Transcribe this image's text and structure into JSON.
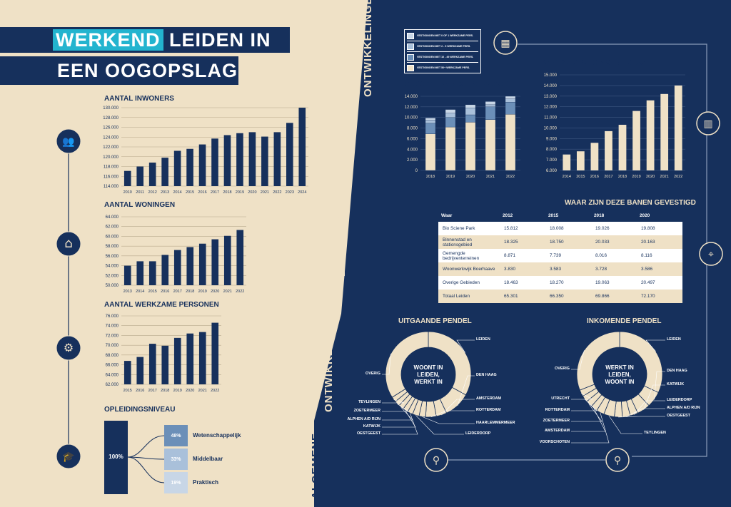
{
  "header": {
    "word_highlight": "WERKEND",
    "line1_rest": "LEIDEN IN",
    "line2": "EEN OOGOPSLAG"
  },
  "vertical_left": {
    "part1": "ALGEMENE",
    "part2": "ONTWIKKELINGEN"
  },
  "vertical_right": {
    "part1": "ECONOMISCHE",
    "part2": "ONTWIKKELINGEN"
  },
  "icons": [
    "people-icon",
    "house-icon",
    "gear-icon",
    "graduation-cap-icon",
    "buildings-icon",
    "office-building-icon",
    "map-pin-icon",
    "commute-icon"
  ],
  "colors": {
    "navy": "#16305c",
    "beige": "#efe1c6",
    "light_blue": "#6b8fb8",
    "pale_blue": "#a9c0da",
    "pale2": "#c8d6e6"
  },
  "chart_data": [
    {
      "id": "inwoners",
      "type": "bar",
      "title": "AANTAL INWONERS",
      "categories": [
        "2010",
        "2011",
        "2012",
        "2013",
        "2014",
        "2015",
        "2016",
        "2017",
        "2018",
        "2019",
        "2020",
        "2021",
        "2022",
        "2023",
        "2024"
      ],
      "values": [
        117100,
        118000,
        118800,
        119800,
        121200,
        121600,
        122500,
        123700,
        124400,
        124800,
        125000,
        124100,
        125000,
        126900,
        130000
      ],
      "ylim": [
        114000,
        130000
      ],
      "yticks": [
        "114.000",
        "116.000",
        "118.000",
        "120.000",
        "122.000",
        "124.000",
        "126.000",
        "128.000",
        "130.000"
      ]
    },
    {
      "id": "woningen",
      "type": "bar",
      "title": "AANTAL WONINGEN",
      "categories": [
        "2013",
        "2014",
        "2015",
        "2016",
        "2017",
        "2018",
        "2019",
        "2020",
        "2021",
        "2022"
      ],
      "values": [
        54000,
        54900,
        54900,
        56200,
        57200,
        57800,
        58500,
        59400,
        60100,
        61300
      ],
      "ylim": [
        50000,
        64000
      ],
      "yticks": [
        "50.000",
        "52.000",
        "54.000",
        "56.000",
        "58.000",
        "60.000",
        "62.000",
        "64.000"
      ]
    },
    {
      "id": "werkzame",
      "type": "bar",
      "title": "AANTAL WERKZAME PERSONEN",
      "categories": [
        "2015",
        "2016",
        "2017",
        "2018",
        "2019",
        "2020",
        "2021",
        "2022"
      ],
      "values": [
        66800,
        67600,
        70300,
        69900,
        71500,
        72400,
        72700,
        74600
      ],
      "ylim": [
        62000,
        76000
      ],
      "yticks": [
        "62.000",
        "64.000",
        "66.000",
        "68.000",
        "70.000",
        "72.000",
        "74.000",
        "76.000"
      ]
    },
    {
      "id": "grootte",
      "type": "stacked-bar",
      "title": "GROOTTE VAN DE BEDRIJVEN",
      "categories": [
        "2018",
        "2019",
        "2020",
        "2021",
        "2022"
      ],
      "series": [
        {
          "name": "VESTIGINGEN MET 50+ WERKZAME PERS.",
          "values": [
            6900,
            8200,
            9100,
            9600,
            10600
          ]
        },
        {
          "name": "VESTIGINGEN MET 10 - 49 WERKZAME PERS.",
          "values": [
            2000,
            1800,
            1400,
            2400,
            2300
          ]
        },
        {
          "name": "VESTIGINGEN MET 2 - 9 WERKZAME PERS.",
          "values": [
            600,
            800,
            1300,
            400,
            600
          ]
        },
        {
          "name": "VESTIGINGEN MET 0 OF 1 WERKZAME PERS.",
          "values": [
            400,
            700,
            600,
            600,
            500
          ]
        }
      ],
      "ylim": [
        0,
        14000
      ],
      "yticks": [
        "0",
        "2.000",
        "4.000",
        "6.000",
        "8.000",
        "10.000",
        "12.000",
        "14.000"
      ],
      "legend": "top-left"
    },
    {
      "id": "vestigingen",
      "type": "bar",
      "title": "AANTAL VESTIGINGEN TOTAAL",
      "categories": [
        "2014",
        "2015",
        "2016",
        "2017",
        "2018",
        "2019",
        "2020",
        "2021",
        "2022"
      ],
      "values": [
        7500,
        7800,
        8600,
        9700,
        10300,
        11600,
        12600,
        13200,
        14000
      ],
      "ylim": [
        6000,
        15000
      ],
      "yticks": [
        "6.000",
        "7.000",
        "8.000",
        "9.000",
        "10.000",
        "11.000",
        "12.000",
        "13.000",
        "14.000",
        "15.000"
      ]
    },
    {
      "id": "banen",
      "type": "table",
      "title": "WAAR ZIJN DEZE BANEN GEVESTIGD",
      "headers": [
        "Waar",
        "2012",
        "2015",
        "2018",
        "2020"
      ],
      "rows": [
        [
          "Bio Sciene Park",
          "15.812",
          "18.008",
          "19.026",
          "19.808"
        ],
        [
          "Binnenstad en stationsgebied",
          "18.325",
          "18.750",
          "20.033",
          "20.163"
        ],
        [
          "Gemengde bedrijventerreinen",
          "8.871",
          "7.739",
          "8.016",
          "8.116"
        ],
        [
          "Woonwerkwijk Boerhaave",
          "3.830",
          "3.583",
          "3.728",
          "3.586"
        ],
        [
          "Overige Gebieden",
          "18.463",
          "18.270",
          "19.063",
          "20.497"
        ],
        [
          "Totaal Leiden",
          "65.301",
          "66.350",
          "69.866",
          "72.170"
        ]
      ]
    },
    {
      "id": "uitgaande",
      "type": "pie",
      "title": "UITGAANDE PENDEL",
      "center": [
        "WOONT IN",
        "LEIDEN,",
        "WERKT IN"
      ],
      "labels": [
        "LEIDEN",
        "DEN HAAG",
        "AMSTERDAM",
        "ROTTERDAM",
        "HAARLEMMERMEER",
        "LEIDERDORP",
        "OESTGEEST",
        "KATWIJK",
        "ALPHEN A/D RIJN",
        "ZOETERMEER",
        "TEYLINGEN",
        "OVERIG"
      ],
      "values": [
        33,
        10,
        4,
        4,
        2.5,
        2.5,
        2,
        2,
        2,
        2,
        2,
        34
      ]
    },
    {
      "id": "inkomende",
      "type": "pie",
      "title": "INKOMENDE PENDEL",
      "center": [
        "WERKT IN",
        "LEIDEN,",
        "WOONT IN"
      ],
      "labels": [
        "LEIDEN",
        "DEN HAAG",
        "KATWIJK",
        "LEIDERDORP",
        "ALPHEN A/D RIJN",
        "OESTGEEST",
        "TEYLINGEN",
        "VOORSCHOTEN",
        "AMSTERDAM",
        "ZOETERMEER",
        "ROTTERDAM",
        "UTRECHT",
        "OVERIG"
      ],
      "values": [
        32,
        6,
        5,
        3,
        3,
        3,
        4,
        3,
        2.5,
        2.5,
        2.5,
        2.5,
        31
      ]
    },
    {
      "id": "opleiding",
      "type": "bar",
      "title": "OPLEIDINGSNIVEAU",
      "total_label": "100%",
      "categories": [
        "Wetenschappelijk",
        "Middelbaar",
        "Praktisch"
      ],
      "percent_labels": [
        "48%",
        "33%",
        "19%"
      ],
      "values": [
        48,
        33,
        19
      ]
    }
  ]
}
